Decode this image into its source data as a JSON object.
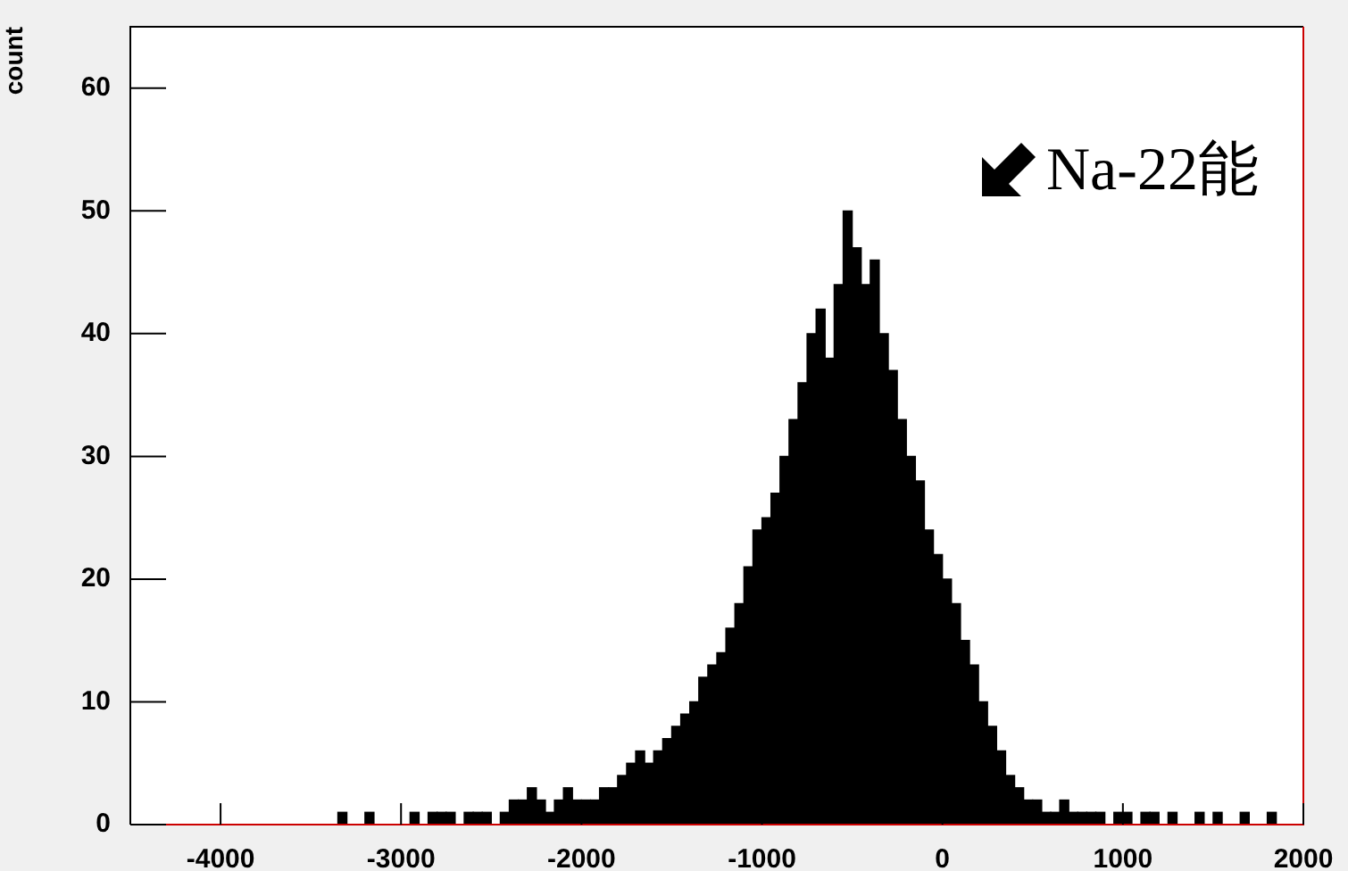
{
  "chart_data": {
    "type": "histogram",
    "ylabel": "count",
    "bins": [
      -4500,
      -4450,
      -4400,
      -4350,
      -4300,
      -4250,
      -4200,
      -4150,
      -4100,
      -4050,
      -4000,
      -3950,
      -3900,
      -3850,
      -3800,
      -3750,
      -3700,
      -3650,
      -3600,
      -3550,
      -3500,
      -3450,
      -3400,
      -3350,
      -3300,
      -3250,
      -3200,
      -3150,
      -3100,
      -3050,
      -3000,
      -2950,
      -2900,
      -2850,
      -2800,
      -2750,
      -2700,
      -2650,
      -2600,
      -2550,
      -2500,
      -2450,
      -2400,
      -2350,
      -2300,
      -2250,
      -2200,
      -2150,
      -2100,
      -2050,
      -2000,
      -1950,
      -1900,
      -1850,
      -1800,
      -1750,
      -1700,
      -1650,
      -1600,
      -1550,
      -1500,
      -1450,
      -1400,
      -1350,
      -1300,
      -1250,
      -1200,
      -1150,
      -1100,
      -1050,
      -1000,
      -950,
      -900,
      -850,
      -800,
      -750,
      -700,
      -650,
      -600,
      -550,
      -500,
      -450,
      -400,
      -350,
      -300,
      -250,
      -200,
      -150,
      -100,
      -50,
      0,
      50,
      100,
      150,
      200,
      250,
      300,
      350,
      400,
      450,
      500,
      550,
      600,
      650,
      700,
      750,
      800,
      850,
      900,
      950,
      1000,
      1050,
      1100,
      1150,
      1200,
      1250,
      1300,
      1350,
      1400,
      1450,
      1500,
      1550,
      1600,
      1650,
      1700,
      1750,
      1800,
      1850,
      1900,
      1950,
      2000
    ],
    "values": [
      0,
      0,
      0,
      0,
      0,
      0,
      0,
      0,
      0,
      0,
      0,
      0,
      0,
      0,
      0,
      0,
      0,
      0,
      0,
      0,
      0,
      0,
      0,
      1,
      0,
      0,
      1,
      0,
      0,
      0,
      0,
      1,
      0,
      1,
      1,
      1,
      0,
      1,
      1,
      1,
      0,
      1,
      2,
      2,
      3,
      2,
      1,
      2,
      3,
      2,
      2,
      2,
      3,
      3,
      4,
      5,
      6,
      5,
      6,
      7,
      8,
      9,
      10,
      12,
      13,
      14,
      16,
      18,
      21,
      24,
      25,
      27,
      30,
      33,
      36,
      40,
      42,
      38,
      44,
      50,
      47,
      44,
      46,
      40,
      37,
      33,
      30,
      28,
      24,
      22,
      20,
      18,
      15,
      13,
      10,
      8,
      6,
      4,
      3,
      2,
      2,
      1,
      1,
      2,
      1,
      1,
      1,
      1,
      0,
      1,
      1,
      0,
      1,
      1,
      0,
      1,
      0,
      0,
      1,
      0,
      1,
      0,
      0,
      1,
      0,
      0,
      1,
      0,
      0,
      0
    ],
    "color": "#000000",
    "xlim": [
      -4500,
      2000
    ],
    "xticks": [
      -4000,
      -3000,
      -2000,
      -1000,
      0,
      1000,
      2000
    ],
    "ylim": [
      0,
      65
    ],
    "yticks": [
      0,
      10,
      20,
      30,
      40,
      50,
      60
    ],
    "annotations": [
      "Na-22能"
    ]
  }
}
